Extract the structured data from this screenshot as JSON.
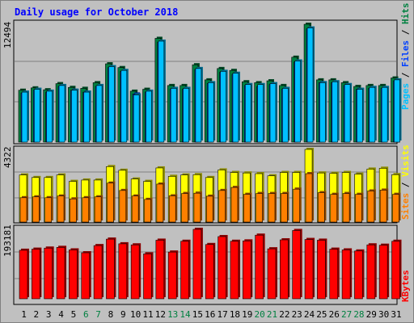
{
  "colors": {
    "background": "#c0c0c0",
    "hits": "#008040",
    "files": "#0040ff",
    "pages": "#00c0ff",
    "visits": "#ffff00",
    "sites": "#ff8000",
    "kbytes": "#ff0000",
    "title": "#0000ff",
    "weekend_day": "#008040"
  },
  "chart_data": [
    {
      "type": "bar",
      "title": "Daily usage for October 2018",
      "ymax_label": "12494",
      "legend": [
        {
          "text": "Hits",
          "color": "#008040"
        },
        {
          "text": "Files",
          "color": "#0040ff"
        },
        {
          "text": "Pages",
          "color": "#00c0ff"
        }
      ],
      "categories": [
        "1",
        "2",
        "3",
        "4",
        "5",
        "6",
        "7",
        "8",
        "9",
        "10",
        "11",
        "12",
        "13",
        "14",
        "15",
        "16",
        "17",
        "18",
        "19",
        "20",
        "21",
        "22",
        "23",
        "24",
        "25",
        "26",
        "27",
        "28",
        "29",
        "30",
        "31"
      ],
      "weekend_days": [
        "6",
        "7",
        "13",
        "14",
        "20",
        "21",
        "27",
        "28"
      ],
      "ylim": [
        0,
        12494
      ],
      "series": [
        {
          "name": "Hits",
          "values": [
            5500,
            5750,
            5550,
            6200,
            5800,
            5700,
            6300,
            8300,
            7900,
            5400,
            5600,
            11000,
            6000,
            6000,
            8200,
            6600,
            7800,
            7600,
            6400,
            6300,
            6500,
            6000,
            9000,
            12494,
            6600,
            6600,
            6300,
            5900,
            6000,
            6000,
            6800
          ]
        },
        {
          "name": "Files",
          "values": [
            5200,
            5500,
            5300,
            5900,
            5500,
            5300,
            5900,
            7900,
            7500,
            5100,
            5300,
            10600,
            5600,
            5600,
            7700,
            6200,
            7400,
            7200,
            6000,
            5900,
            6100,
            5600,
            8500,
            12000,
            6300,
            6300,
            6000,
            5600,
            5700,
            5700,
            6500
          ]
        },
        {
          "name": "Pages",
          "values": [
            5300,
            5600,
            5400,
            6000,
            5500,
            5300,
            6000,
            8000,
            7600,
            5000,
            5400,
            10700,
            5700,
            5700,
            7800,
            6300,
            7500,
            7300,
            6100,
            6100,
            6200,
            5700,
            8600,
            12100,
            6300,
            6400,
            6100,
            5600,
            5800,
            5800,
            6600
          ]
        }
      ]
    },
    {
      "type": "bar",
      "ymax_label": "4322",
      "legend": [
        {
          "text": "Visits",
          "color": "#ffff00"
        },
        {
          "text": "Sites",
          "color": "#ff8000"
        }
      ],
      "categories": [
        "1",
        "2",
        "3",
        "4",
        "5",
        "6",
        "7",
        "8",
        "9",
        "10",
        "11",
        "12",
        "13",
        "14",
        "15",
        "16",
        "17",
        "18",
        "19",
        "20",
        "21",
        "22",
        "23",
        "24",
        "25",
        "26",
        "27",
        "28",
        "29",
        "30",
        "31"
      ],
      "ylim": [
        0,
        4322
      ],
      "series": [
        {
          "name": "Visits",
          "values": [
            2800,
            2650,
            2650,
            2800,
            2420,
            2500,
            2500,
            3300,
            3080,
            2560,
            2420,
            3220,
            2720,
            2800,
            2820,
            2650,
            3100,
            2950,
            2920,
            2880,
            2750,
            2950,
            2950,
            4322,
            2920,
            2900,
            2950,
            2850,
            3150,
            3200,
            2820
          ]
        },
        {
          "name": "Sites",
          "values": [
            1450,
            1500,
            1450,
            1550,
            1380,
            1450,
            1500,
            2320,
            1880,
            1550,
            1350,
            2260,
            1560,
            1700,
            1720,
            1540,
            1880,
            2060,
            1650,
            1700,
            1700,
            1700,
            1960,
            2880,
            1750,
            1650,
            1700,
            1650,
            1850,
            1900,
            1650
          ]
        }
      ]
    },
    {
      "type": "bar",
      "ymax_label": "193181",
      "legend": [
        {
          "text": "KBytes",
          "color": "#ff0000"
        }
      ],
      "categories": [
        "1",
        "2",
        "3",
        "4",
        "5",
        "6",
        "7",
        "8",
        "9",
        "10",
        "11",
        "12",
        "13",
        "14",
        "15",
        "16",
        "17",
        "18",
        "19",
        "20",
        "21",
        "22",
        "23",
        "24",
        "25",
        "26",
        "27",
        "28",
        "29",
        "30",
        "31"
      ],
      "ylim": [
        0,
        193181
      ],
      "series": [
        {
          "name": "KBytes",
          "values": [
            135000,
            138000,
            141000,
            143000,
            136000,
            128000,
            148000,
            166000,
            153000,
            150000,
            125000,
            163000,
            130000,
            160000,
            193181,
            151000,
            173000,
            160000,
            161000,
            177000,
            139000,
            164000,
            190000,
            165000,
            163000,
            138000,
            136000,
            133000,
            150000,
            149000,
            160000
          ]
        }
      ]
    }
  ]
}
